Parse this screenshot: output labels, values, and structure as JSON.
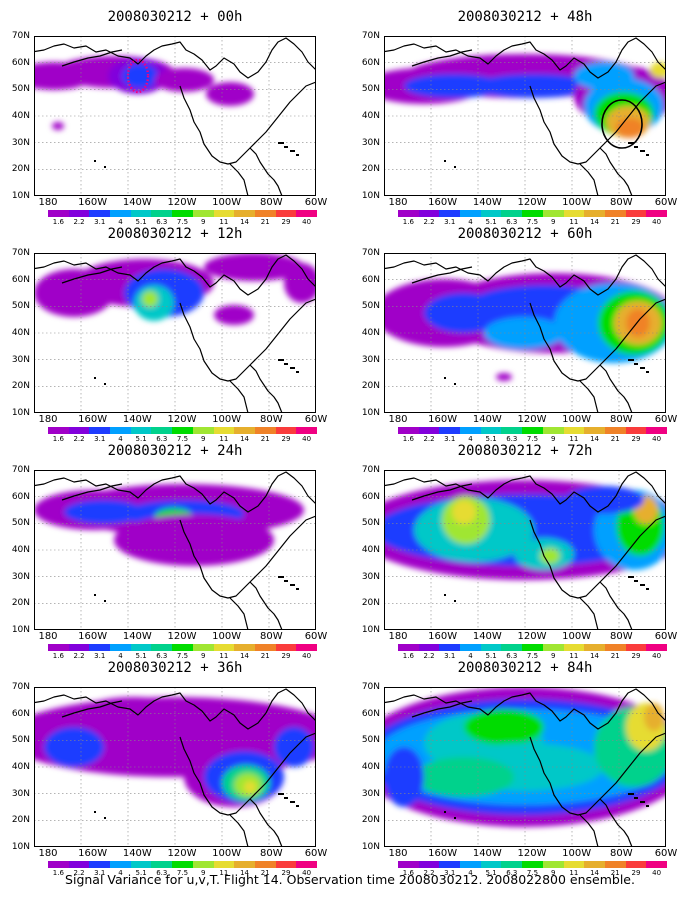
{
  "panels": [
    {
      "title": "2008030212 + 00h",
      "key": "p00"
    },
    {
      "title": "2008030212 + 48h",
      "key": "p48"
    },
    {
      "title": "2008030212 + 12h",
      "key": "p12"
    },
    {
      "title": "2008030212 + 60h",
      "key": "p60"
    },
    {
      "title": "2008030212 + 24h",
      "key": "p24"
    },
    {
      "title": "2008030212 + 72h",
      "key": "p72"
    },
    {
      "title": "2008030212 + 36h",
      "key": "p36"
    },
    {
      "title": "2008030212 + 84h",
      "key": "p84"
    }
  ],
  "lat_labels": [
    "70N",
    "60N",
    "50N",
    "40N",
    "30N",
    "20N",
    "10N"
  ],
  "lon_labels": [
    "180",
    "160W",
    "140W",
    "120W",
    "100W",
    "80W",
    "60W"
  ],
  "colorbar": {
    "labels": [
      "1.6",
      "2.2",
      "3.1",
      "4",
      "5.1",
      "6.3",
      "7.5",
      "9",
      "11",
      "14",
      "21",
      "29",
      "40"
    ],
    "colors": [
      "#a000c8",
      "#8200dc",
      "#1e3cff",
      "#00a0ff",
      "#00c8c8",
      "#00d28c",
      "#00dc00",
      "#a0e632",
      "#e6dc32",
      "#e6af2d",
      "#f08228",
      "#fa3c3c",
      "#f00082"
    ]
  },
  "caption": "Signal Variance for u,v,T. Flight 14. Observation time 2008030212. 2008022800 ensemble.",
  "chart_data": {
    "type": "heatmap",
    "variable": "Signal Variance for u,v,T",
    "flight": "Flight 14",
    "observation_time": "2008030212",
    "ensemble": "2008022800",
    "forecast_leads_h": [
      0,
      12,
      24,
      36,
      48,
      60,
      72,
      84
    ],
    "lon_range": [
      "180",
      "60W"
    ],
    "lat_range": [
      "10N",
      "70N"
    ],
    "contour_levels": [
      1.6,
      2.2,
      3.1,
      4,
      5.1,
      6.3,
      7.5,
      9,
      11,
      14,
      21,
      29,
      40
    ]
  }
}
